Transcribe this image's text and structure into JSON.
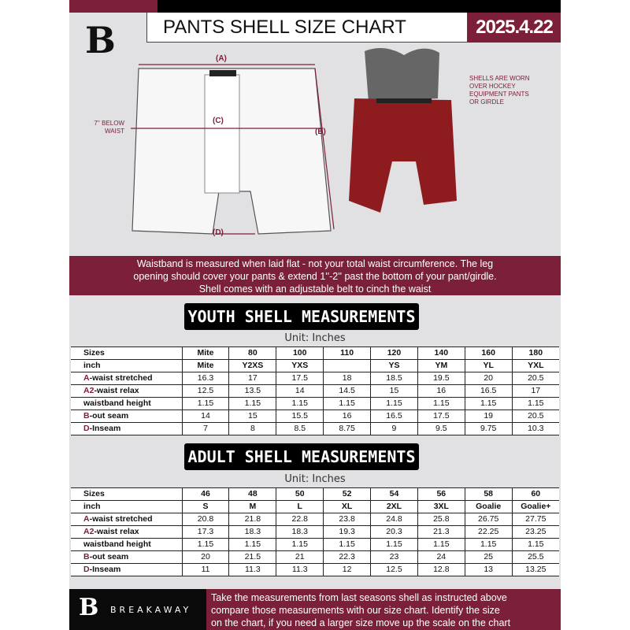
{
  "header": {
    "title": "PANTS SHELL SIZE CHART",
    "date": "2025.4.22",
    "logo_letter": "B"
  },
  "diagram": {
    "label_a": "(A)",
    "label_b": "(B)",
    "label_c": "(C)",
    "label_d": "(D)",
    "below_waist_note": "7'' BELOW WAIST",
    "worn_note": "SHELLS ARE WORN OVER HOCKEY EQUIPMENT PANTS OR GIRDLE"
  },
  "banner": {
    "line1": "Waistband is measured when laid flat - not your total waist circumference. The leg",
    "line2": "opening should cover your pants & extend 1''-2'' past the bottom of your pant/girdle.",
    "line3": "Shell comes with an adjustable belt to cinch the waist"
  },
  "youth": {
    "title": "YOUTH SHELL MEASUREMENTS",
    "unit": "Unit: Inches",
    "rows": [
      {
        "key": "",
        "label": "Sizes",
        "values": [
          "Mite",
          "80",
          "100",
          "110",
          "120",
          "140",
          "160",
          "180"
        ]
      },
      {
        "key": "",
        "label": "inch",
        "values": [
          "Mite",
          "Y2XS",
          "YXS",
          "",
          "YS",
          "YM",
          "YL",
          "YXL"
        ]
      },
      {
        "key": "A",
        "label": "-waist stretched",
        "values": [
          "16.3",
          "17",
          "17.5",
          "18",
          "18.5",
          "19.5",
          "20",
          "20.5"
        ]
      },
      {
        "key": "A2",
        "label": "-waist relax",
        "values": [
          "12.5",
          "13.5",
          "14",
          "14.5",
          "15",
          "16",
          "16.5",
          "17"
        ]
      },
      {
        "key": "",
        "label": "waistband height",
        "values": [
          "1.15",
          "1.15",
          "1.15",
          "1.15",
          "1.15",
          "1.15",
          "1.15",
          "1.15"
        ]
      },
      {
        "key": "B",
        "label": "-out seam",
        "values": [
          "14",
          "15",
          "15.5",
          "16",
          "16.5",
          "17.5",
          "19",
          "20.5"
        ]
      },
      {
        "key": "D",
        "label": "-Inseam",
        "values": [
          "7",
          "8",
          "8.5",
          "8.75",
          "9",
          "9.5",
          "9.75",
          "10.3"
        ]
      }
    ]
  },
  "adult": {
    "title": "ADULT SHELL MEASUREMENTS",
    "unit": "Unit: Inches",
    "rows": [
      {
        "key": "",
        "label": "Sizes",
        "values": [
          "46",
          "48",
          "50",
          "52",
          "54",
          "56",
          "58",
          "60"
        ]
      },
      {
        "key": "",
        "label": "inch",
        "values": [
          "S",
          "M",
          "L",
          "XL",
          "2XL",
          "3XL",
          "Goalie",
          "Goalie+"
        ]
      },
      {
        "key": "A",
        "label": "-waist stretched",
        "values": [
          "20.8",
          "21.8",
          "22.8",
          "23.8",
          "24.8",
          "25.8",
          "26.75",
          "27.75"
        ]
      },
      {
        "key": "A2",
        "label": "-waist relax",
        "values": [
          "17.3",
          "18.3",
          "18.3",
          "19.3",
          "20.3",
          "21.3",
          "22.25",
          "23.25"
        ]
      },
      {
        "key": "",
        "label": "waistband height",
        "values": [
          "1.15",
          "1.15",
          "1.15",
          "1.15",
          "1.15",
          "1.15",
          "1.15",
          "1.15"
        ]
      },
      {
        "key": "B",
        "label": "-out seam",
        "values": [
          "20",
          "21.5",
          "21",
          "22.3",
          "23",
          "24",
          "25",
          "25.5"
        ]
      },
      {
        "key": "D",
        "label": "-Inseam",
        "values": [
          "11",
          "11.3",
          "11.3",
          "12",
          "12.5",
          "12.8",
          "13",
          "13.25"
        ]
      }
    ]
  },
  "footer": {
    "brand": "BREAKAWAY",
    "line1": "Take the measurements from last seasons shell as instructed above",
    "line2": "compare those measurements  with our size chart. Identify the size",
    "line3": "on the chart, if you need a larger size move up the scale on the chart"
  },
  "colors": {
    "maroon": "#7c2039",
    "black": "#000000",
    "background": "#e1e1e4"
  }
}
